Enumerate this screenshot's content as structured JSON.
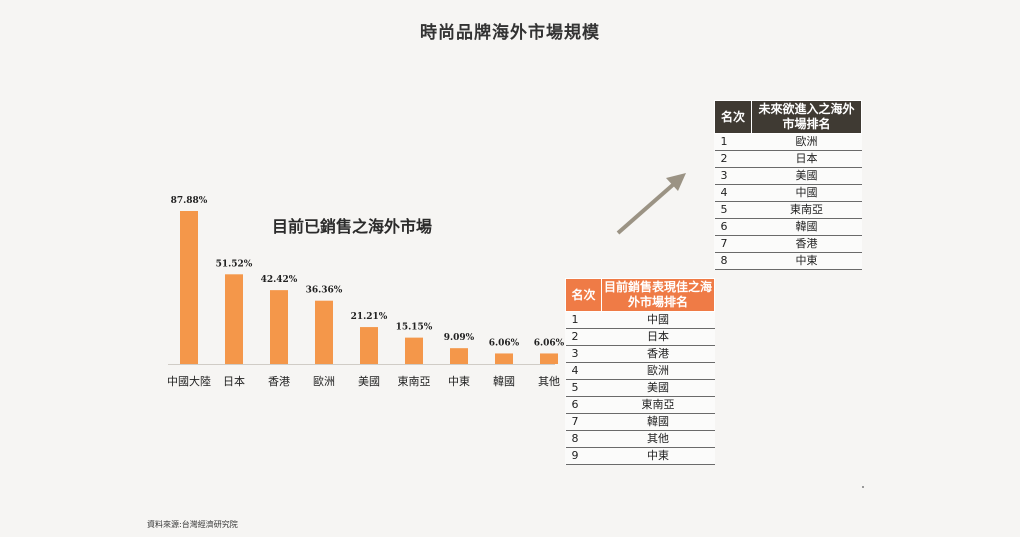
{
  "title": "時尚品牌海外市場規模",
  "chart_data": {
    "type": "bar",
    "title": "目前已銷售之海外市場",
    "categories": [
      "中國大陸",
      "日本",
      "香港",
      "歐洲",
      "美國",
      "東南亞",
      "中東",
      "韓國",
      "其他"
    ],
    "values": [
      87.88,
      51.52,
      42.42,
      36.36,
      21.21,
      15.15,
      9.09,
      6.06,
      6.06
    ],
    "value_labels": [
      "87.88%",
      "51.52%",
      "42.42%",
      "36.36%",
      "21.21%",
      "15.15%",
      "9.09%",
      "6.06%",
      "6.06%"
    ],
    "unit": "%",
    "bar_color": "#f4974a",
    "ylim": [
      0,
      100
    ],
    "grid": false,
    "legend": "none"
  },
  "future_table": {
    "header_rank": "名次",
    "header_name": "未來欲進入之海外市場排名",
    "header_color": "#3f3a33",
    "rows": [
      {
        "rank": "1",
        "name": "歐洲"
      },
      {
        "rank": "2",
        "name": "日本"
      },
      {
        "rank": "3",
        "name": "美國"
      },
      {
        "rank": "4",
        "name": "中國"
      },
      {
        "rank": "5",
        "name": "東南亞"
      },
      {
        "rank": "6",
        "name": "韓國"
      },
      {
        "rank": "7",
        "name": "香港"
      },
      {
        "rank": "8",
        "name": "中東"
      }
    ]
  },
  "current_table": {
    "header_rank": "名次",
    "header_name": "目前銷售表現佳之海外市場排名",
    "header_color": "#ef7b46",
    "rows": [
      {
        "rank": "1",
        "name": "中國"
      },
      {
        "rank": "2",
        "name": "日本"
      },
      {
        "rank": "3",
        "name": "香港"
      },
      {
        "rank": "4",
        "name": "歐洲"
      },
      {
        "rank": "5",
        "name": "美國"
      },
      {
        "rank": "6",
        "name": "東南亞"
      },
      {
        "rank": "7",
        "name": "韓國"
      },
      {
        "rank": "8",
        "name": "其他"
      },
      {
        "rank": "9",
        "name": "中東"
      }
    ]
  },
  "source": "資料來源:台灣經濟研究院",
  "arrow_color": "#9b9384"
}
